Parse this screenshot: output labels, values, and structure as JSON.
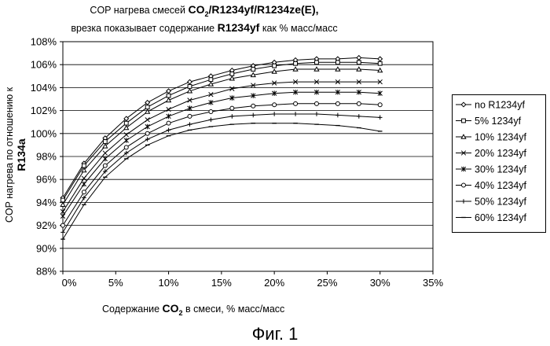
{
  "title": {
    "line1_prefix": "COP нагрева смесей",
    "line1_formula": "CO",
    "line1_sub": "2",
    "line1_rest": "/R1234yf/R1234ze(E),",
    "line2_prefix": "врезка показывает содержание",
    "line2_bold": "R1234yf",
    "line2_suffix": "как % масс/масс"
  },
  "xlabel": {
    "prefix": "Содержание",
    "bold": "CO",
    "sub": "2",
    "suffix": "в смеси, % масс/масс"
  },
  "ylabel": {
    "prefix": "COP нагрева по отношению к",
    "bold": "R134a"
  },
  "figure_caption": "Фиг. 1",
  "chart_data": {
    "type": "line",
    "title": "COP нагрева смесей CO2/R1234yf/R1234ze(E), врезка показывает содержание R1234yf как % масс/масс",
    "xlabel": "Содержание CO2 в смеси, % масс/масс",
    "ylabel": "COP нагрева по отношению к R134a",
    "xlim": [
      0,
      35
    ],
    "ylim": [
      88,
      108
    ],
    "x_ticks": [
      "0%",
      "5%",
      "10%",
      "15%",
      "20%",
      "25%",
      "30%",
      "35%"
    ],
    "y_ticks": [
      "88%",
      "90%",
      "92%",
      "94%",
      "96%",
      "98%",
      "100%",
      "102%",
      "104%",
      "106%",
      "108%"
    ],
    "grid": "horizontal",
    "legend_position": "right",
    "x": [
      0,
      2,
      4,
      6,
      8,
      10,
      12,
      14,
      16,
      18,
      20,
      22,
      24,
      26,
      28,
      30
    ],
    "series": [
      {
        "name": "no R1234yf",
        "marker": "diamond",
        "values": [
          94.4,
          97.4,
          99.6,
          101.3,
          102.7,
          103.7,
          104.5,
          105.0,
          105.5,
          105.9,
          106.2,
          106.4,
          106.5,
          106.5,
          106.6,
          106.5
        ]
      },
      {
        "name": "5% 1234yf",
        "marker": "square",
        "values": [
          94.2,
          97.2,
          99.3,
          100.9,
          102.3,
          103.3,
          104.1,
          104.7,
          105.2,
          105.6,
          105.9,
          106.1,
          106.2,
          106.2,
          106.2,
          106.1
        ]
      },
      {
        "name": "10% 1234yf",
        "marker": "triangle",
        "values": [
          93.8,
          96.8,
          98.9,
          100.5,
          101.9,
          102.9,
          103.7,
          104.3,
          104.8,
          105.1,
          105.4,
          105.6,
          105.6,
          105.6,
          105.6,
          105.5
        ]
      },
      {
        "name": "20% 1234yf",
        "marker": "x",
        "values": [
          93.2,
          96.1,
          98.3,
          99.9,
          101.2,
          102.1,
          102.9,
          103.4,
          103.9,
          104.2,
          104.4,
          104.5,
          104.5,
          104.5,
          104.5,
          104.5
        ]
      },
      {
        "name": "30% 1234yf",
        "marker": "asterisk",
        "values": [
          92.8,
          95.6,
          97.8,
          99.4,
          100.6,
          101.5,
          102.2,
          102.7,
          103.1,
          103.3,
          103.5,
          103.6,
          103.6,
          103.6,
          103.6,
          103.5
        ]
      },
      {
        "name": "40% 1234yf",
        "marker": "circle",
        "values": [
          92.0,
          94.9,
          97.2,
          98.8,
          100.0,
          100.9,
          101.5,
          101.9,
          102.2,
          102.4,
          102.5,
          102.6,
          102.6,
          102.6,
          102.6,
          102.5
        ]
      },
      {
        "name": "50% 1234yf",
        "marker": "plus",
        "values": [
          91.4,
          94.4,
          96.7,
          98.3,
          99.5,
          100.3,
          100.8,
          101.2,
          101.5,
          101.6,
          101.7,
          101.7,
          101.7,
          101.6,
          101.5,
          101.4
        ]
      },
      {
        "name": "60% 1234yf",
        "marker": "dash",
        "values": [
          90.8,
          93.8,
          96.2,
          97.8,
          99.0,
          99.8,
          100.3,
          100.6,
          100.8,
          100.9,
          100.9,
          100.9,
          100.8,
          100.7,
          100.5,
          100.2
        ]
      }
    ]
  }
}
